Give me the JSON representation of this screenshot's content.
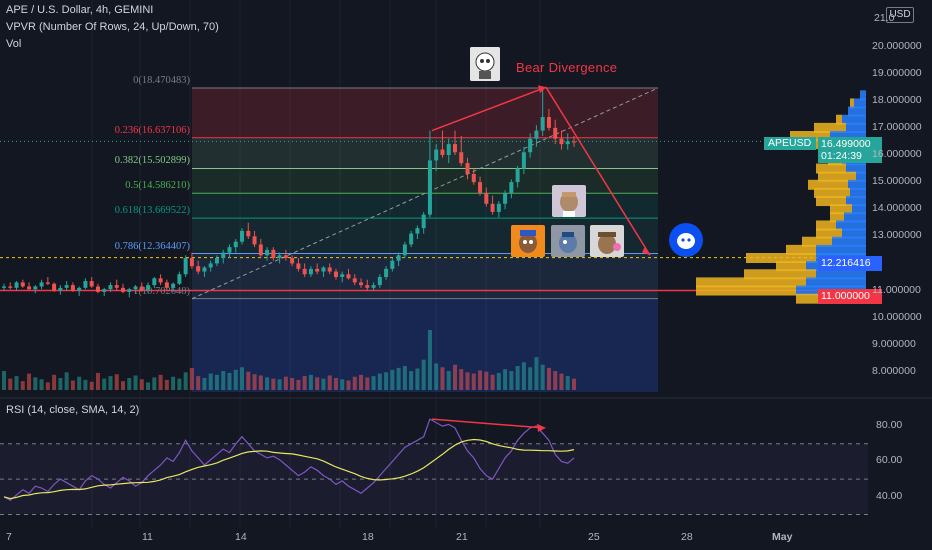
{
  "header": {
    "title": "APE / U.S. Dollar, 4h, GEMINI",
    "indicator": "VPVR (Number Of Rows, 24, Up/Down, 70)",
    "volume": "Vol",
    "currency": "USD"
  },
  "rsi_header": "RSI (14, close, SMA, 14, 2)",
  "price_tags": {
    "symbol": "APEUSD",
    "last_price": "16.499000",
    "countdown": "01:24:39",
    "line_price": "12.216416",
    "support_price": "11.000000"
  },
  "annotation": "Bear Divergence",
  "fib_levels": [
    {
      "ratio": "0",
      "price": "18.470483",
      "label": "0(18.470483)",
      "color": "#787b86"
    },
    {
      "ratio": "0.236",
      "price": "16.637106",
      "label": "0.236(16.637106)",
      "color": "#f23645"
    },
    {
      "ratio": "0.382",
      "price": "15.502899",
      "label": "0.382(15.502899)",
      "color": "#81c784"
    },
    {
      "ratio": "0.5",
      "price": "14.586210",
      "label": "0.5(14.586210)",
      "color": "#4caf50"
    },
    {
      "ratio": "0.618",
      "price": "13.669522",
      "label": "0.618(13.669522)",
      "color": "#089981"
    },
    {
      "ratio": "0.786",
      "price": "12.364407",
      "label": "0.786(12.364407)",
      "color": "#5b9cf6"
    },
    {
      "ratio": "1",
      "price": "10.702648",
      "label": "1(10.702648)",
      "color": "#787b86"
    }
  ],
  "chart_data": {
    "type": "candlestick",
    "title": "APE / U.S. Dollar, 4h, GEMINI",
    "y_axis_ticks": [
      "21.0",
      "20.000000",
      "19.000000",
      "18.000000",
      "17.000000",
      "16.000000",
      "15.000000",
      "14.000000",
      "13.000000",
      "11.000000",
      "10.000000",
      "9.000000",
      "8.000000"
    ],
    "x_axis_ticks": [
      "7",
      "11",
      "14",
      "18",
      "21",
      "25",
      "28",
      "May"
    ],
    "rsi_ticks": [
      "80.00",
      "60.00",
      "40.00"
    ],
    "ylim": [
      7.7,
      21.2
    ],
    "candles_ohlc": [
      [
        11.1,
        11.25,
        11.0,
        11.15
      ],
      [
        11.15,
        11.3,
        11.05,
        11.1
      ],
      [
        11.1,
        11.35,
        11.0,
        11.3
      ],
      [
        11.3,
        11.4,
        11.1,
        11.15
      ],
      [
        11.15,
        11.3,
        11.0,
        11.05
      ],
      [
        11.05,
        11.2,
        10.9,
        11.15
      ],
      [
        11.15,
        11.4,
        11.05,
        11.3
      ],
      [
        11.3,
        11.5,
        11.2,
        11.25
      ],
      [
        11.25,
        11.3,
        10.95,
        11.0
      ],
      [
        11.0,
        11.2,
        10.85,
        11.1
      ],
      [
        11.1,
        11.35,
        11.0,
        11.2
      ],
      [
        11.2,
        11.3,
        10.95,
        11.0
      ],
      [
        11.0,
        11.15,
        10.8,
        11.1
      ],
      [
        11.1,
        11.45,
        11.05,
        11.35
      ],
      [
        11.35,
        11.5,
        11.1,
        11.15
      ],
      [
        11.15,
        11.25,
        10.9,
        10.95
      ],
      [
        10.95,
        11.1,
        10.8,
        11.05
      ],
      [
        11.05,
        11.3,
        10.95,
        11.2
      ],
      [
        11.2,
        11.4,
        11.0,
        11.1
      ],
      [
        11.1,
        11.25,
        10.9,
        10.95
      ],
      [
        10.95,
        11.1,
        10.75,
        11.05
      ],
      [
        11.05,
        11.2,
        10.9,
        11.15
      ],
      [
        11.15,
        11.3,
        10.95,
        11.0
      ],
      [
        11.0,
        11.3,
        10.9,
        11.2
      ],
      [
        11.2,
        11.5,
        11.1,
        11.45
      ],
      [
        11.45,
        11.6,
        11.2,
        11.3
      ],
      [
        11.3,
        11.4,
        11.0,
        11.1
      ],
      [
        11.1,
        11.3,
        10.95,
        11.25
      ],
      [
        11.25,
        11.7,
        11.2,
        11.6
      ],
      [
        11.6,
        12.3,
        11.5,
        12.2
      ],
      [
        12.2,
        12.4,
        11.8,
        11.9
      ],
      [
        11.9,
        12.1,
        11.6,
        11.7
      ],
      [
        11.7,
        11.9,
        11.5,
        11.85
      ],
      [
        11.85,
        12.1,
        11.7,
        12.0
      ],
      [
        12.0,
        12.3,
        11.9,
        12.2
      ],
      [
        12.2,
        12.5,
        12.0,
        12.4
      ],
      [
        12.4,
        12.7,
        12.2,
        12.6
      ],
      [
        12.6,
        12.9,
        12.4,
        12.8
      ],
      [
        12.8,
        13.3,
        12.7,
        13.2
      ],
      [
        13.2,
        13.5,
        12.9,
        13.0
      ],
      [
        13.0,
        13.2,
        12.6,
        12.7
      ],
      [
        12.7,
        12.9,
        12.2,
        12.3
      ],
      [
        12.3,
        12.6,
        12.1,
        12.5
      ],
      [
        12.5,
        12.6,
        12.1,
        12.2
      ],
      [
        12.2,
        12.4,
        12.0,
        12.3
      ],
      [
        12.3,
        12.5,
        12.1,
        12.2
      ],
      [
        12.2,
        12.3,
        11.9,
        12.0
      ],
      [
        12.0,
        12.2,
        11.7,
        11.8
      ],
      [
        11.8,
        12.0,
        11.5,
        11.6
      ],
      [
        11.6,
        11.9,
        11.5,
        11.8
      ],
      [
        11.8,
        12.0,
        11.6,
        11.7
      ],
      [
        11.7,
        11.9,
        11.5,
        11.85
      ],
      [
        11.85,
        12.0,
        11.6,
        11.7
      ],
      [
        11.7,
        11.8,
        11.4,
        11.5
      ],
      [
        11.5,
        11.7,
        11.3,
        11.6
      ],
      [
        11.6,
        11.8,
        11.4,
        11.45
      ],
      [
        11.45,
        11.6,
        11.2,
        11.3
      ],
      [
        11.3,
        11.45,
        11.1,
        11.2
      ],
      [
        11.2,
        11.4,
        11.0,
        11.1
      ],
      [
        11.1,
        11.3,
        11.0,
        11.2
      ],
      [
        11.2,
        11.6,
        11.1,
        11.5
      ],
      [
        11.5,
        11.9,
        11.4,
        11.8
      ],
      [
        11.8,
        12.2,
        11.7,
        12.1
      ],
      [
        12.1,
        12.4,
        11.9,
        12.3
      ],
      [
        12.3,
        12.8,
        12.2,
        12.7
      ],
      [
        12.7,
        13.2,
        12.6,
        13.1
      ],
      [
        13.1,
        13.4,
        12.9,
        13.3
      ],
      [
        13.3,
        13.9,
        13.1,
        13.8
      ],
      [
        13.8,
        16.9,
        13.7,
        15.8
      ],
      [
        15.8,
        16.4,
        15.4,
        16.2
      ],
      [
        16.2,
        16.9,
        15.9,
        16.0
      ],
      [
        16.0,
        16.6,
        15.7,
        16.4
      ],
      [
        16.4,
        16.9,
        16.0,
        16.1
      ],
      [
        16.1,
        16.7,
        15.6,
        15.7
      ],
      [
        15.7,
        15.9,
        15.1,
        15.3
      ],
      [
        15.3,
        15.5,
        14.9,
        15.0
      ],
      [
        15.0,
        15.2,
        14.5,
        14.6
      ],
      [
        14.6,
        14.8,
        14.1,
        14.2
      ],
      [
        14.2,
        14.5,
        13.8,
        13.9
      ],
      [
        13.9,
        14.3,
        13.7,
        14.2
      ],
      [
        14.2,
        14.7,
        14.0,
        14.6
      ],
      [
        14.6,
        15.1,
        14.4,
        15.0
      ],
      [
        15.0,
        15.6,
        14.8,
        15.5
      ],
      [
        15.5,
        16.3,
        15.3,
        16.1
      ],
      [
        16.1,
        16.8,
        15.9,
        16.6
      ],
      [
        16.6,
        17.1,
        16.3,
        16.9
      ],
      [
        16.9,
        18.4,
        16.7,
        17.4
      ],
      [
        17.4,
        17.7,
        16.9,
        17.0
      ],
      [
        17.0,
        17.3,
        16.4,
        16.6
      ],
      [
        16.6,
        16.9,
        16.2,
        16.4
      ],
      [
        16.4,
        16.8,
        16.2,
        16.5
      ],
      [
        16.5,
        16.7,
        16.3,
        16.499
      ]
    ],
    "volume": [
      30,
      18,
      22,
      14,
      26,
      20,
      17,
      12,
      24,
      19,
      28,
      15,
      21,
      16,
      13,
      27,
      18,
      22,
      25,
      14,
      19,
      23,
      17,
      12,
      20,
      24,
      16,
      21,
      18,
      28,
      35,
      22,
      19,
      26,
      24,
      30,
      27,
      32,
      36,
      29,
      25,
      23,
      20,
      18,
      17,
      21,
      19,
      16,
      22,
      24,
      20,
      18,
      23,
      19,
      17,
      15,
      21,
      24,
      20,
      22,
      26,
      28,
      32,
      35,
      38,
      30,
      34,
      48,
      95,
      42,
      36,
      30,
      40,
      33,
      28,
      26,
      31,
      29,
      24,
      27,
      33,
      30,
      38,
      44,
      36,
      52,
      40,
      35,
      30,
      26,
      22,
      18
    ],
    "rsi": [
      40,
      38,
      41,
      44,
      42,
      46,
      45,
      43,
      47,
      50,
      48,
      46,
      44,
      49,
      52,
      50,
      47,
      45,
      48,
      51,
      49,
      46,
      48,
      52,
      55,
      58,
      62,
      60,
      65,
      72,
      66,
      62,
      58,
      61,
      64,
      67,
      65,
      70,
      74,
      70,
      66,
      64,
      62,
      63,
      61,
      58,
      55,
      52,
      54,
      57,
      55,
      52,
      50,
      47,
      49,
      46,
      44,
      42,
      45,
      48,
      52,
      56,
      60,
      64,
      68,
      70,
      72,
      74,
      84,
      82,
      80,
      81,
      79,
      72,
      66,
      62,
      56,
      52,
      50,
      56,
      62,
      66,
      72,
      76,
      79,
      80,
      76,
      72,
      64,
      60,
      59,
      62
    ],
    "rsi_sma_color": "#e6e661",
    "vpvr_profile": "present"
  }
}
